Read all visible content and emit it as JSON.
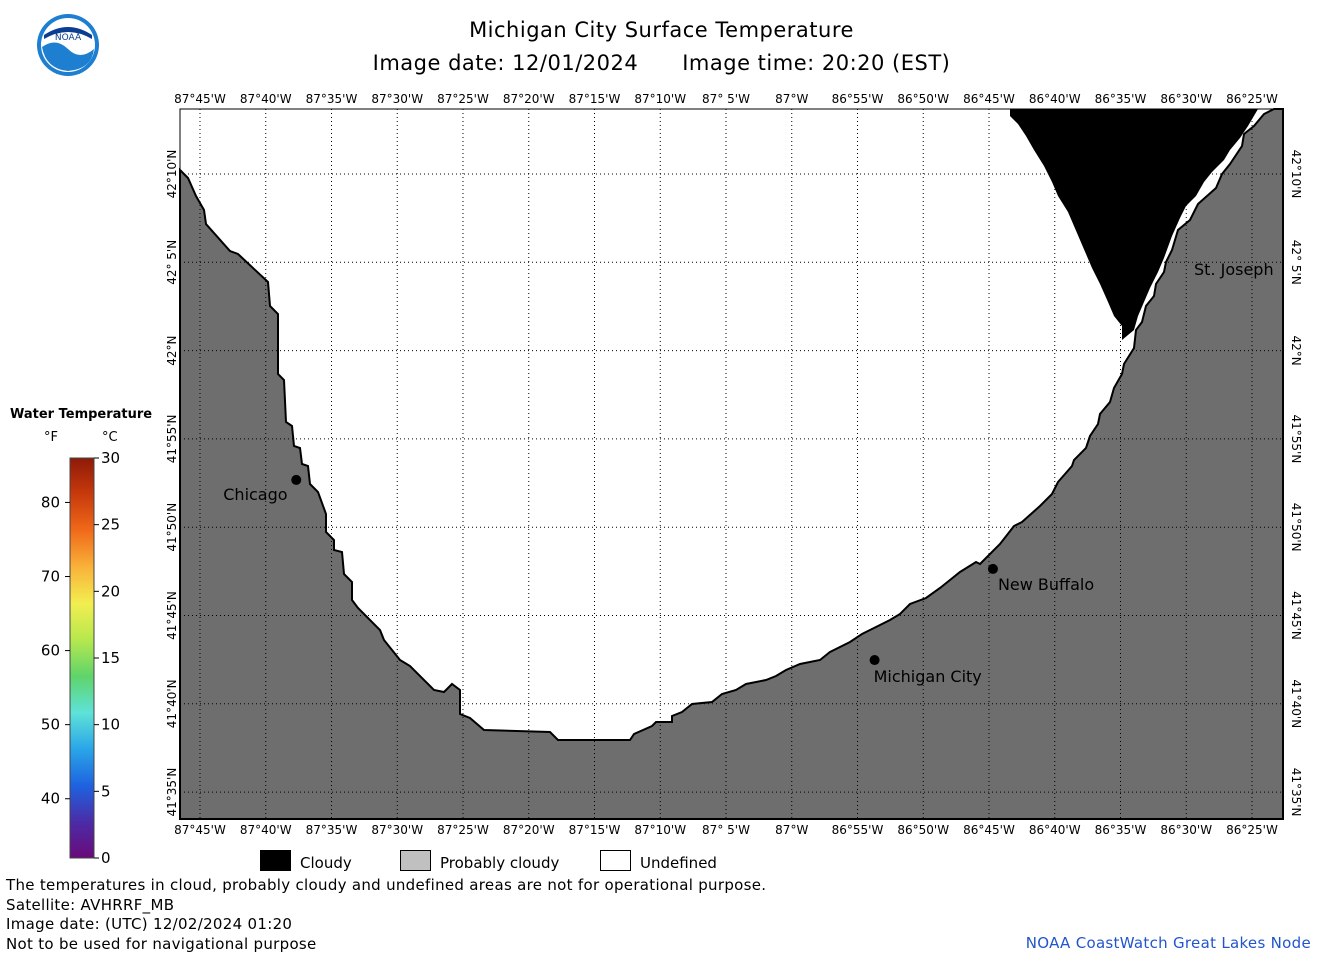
{
  "header": {
    "title": "Michigan City Surface Temperature",
    "image_date": "Image date: 12/01/2024",
    "image_time": "Image time: 20:20 (EST)"
  },
  "logo": {
    "icon": "noaa-logo-icon",
    "text": "NOAA"
  },
  "map": {
    "lon_ticks": [
      "87°45'W",
      "87°40'W",
      "87°35'W",
      "87°30'W",
      "87°25'W",
      "87°20'W",
      "87°15'W",
      "87°10'W",
      "87° 5'W",
      "87°W",
      "86°55'W",
      "86°50'W",
      "86°45'W",
      "86°40'W",
      "86°35'W",
      "86°30'W",
      "86°25'W"
    ],
    "lat_ticks": [
      "42°10'N",
      "42° 5'N",
      "42°N",
      "41°55'N",
      "41°50'N",
      "41°45'N",
      "41°40'N",
      "41°35'N"
    ],
    "land_color": "#6e6e6e",
    "cloud_color": "#000000",
    "undefined_color": "#ffffff",
    "cities": [
      {
        "name": "Chicago",
        "lon": -87.628,
        "lat": 41.878
      },
      {
        "name": "Michigan City",
        "lon": -86.895,
        "lat": 41.708
      },
      {
        "name": "New Buffalo",
        "lon": -86.745,
        "lat": 41.794
      },
      {
        "name": "St. Joseph",
        "lon": -86.48,
        "lat": 42.094
      }
    ]
  },
  "colorbar": {
    "title": "Water Temperature",
    "unit_f": "°F",
    "unit_c": "°C",
    "f_ticks": [
      "40",
      "50",
      "60",
      "70",
      "80"
    ],
    "c_ticks": [
      "0",
      "5",
      "10",
      "15",
      "20",
      "25",
      "30"
    ],
    "colors": [
      "#6a0a7a",
      "#4b2ca8",
      "#1e63e0",
      "#2aa6e8",
      "#5fe2d8",
      "#5fd46a",
      "#b6e84e",
      "#f2ee50",
      "#f9b23a",
      "#f06a1a",
      "#c83a0c",
      "#8e1a08"
    ]
  },
  "legend": {
    "cloudy": "Cloudy",
    "probably_cloudy": "Probably cloudy",
    "undefined": "Undefined",
    "cloudy_color": "#000000",
    "probably_cloudy_color": "#c0c0c0",
    "undefined_color": "#ffffff"
  },
  "notes": {
    "disclaimer": "The temperatures in cloud, probably cloudy and undefined areas are not for operational purpose.",
    "satellite": "Satellite: AVHRRF_MB",
    "utc_date": "Image date: (UTC) 12/02/2024  01:20",
    "nav": "Not to be used for navigational purpose",
    "credit": "NOAA CoastWatch Great Lakes Node"
  }
}
